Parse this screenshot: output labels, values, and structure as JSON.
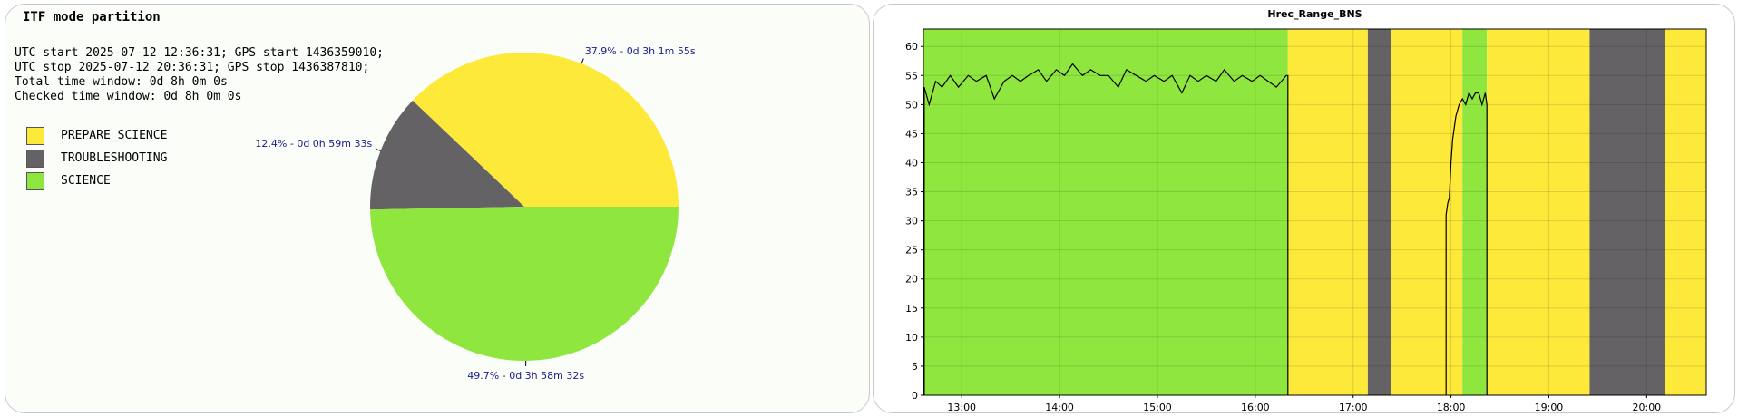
{
  "left": {
    "title": "ITF mode partition",
    "info": [
      "UTC start 2025-07-12 12:36:31; GPS start 1436359010;",
      "UTC stop 2025-07-12 20:36:31; GPS stop 1436387810;",
      "Total time window: 0d 8h 0m 0s",
      "Checked time window: 0d 8h 0m 0s"
    ],
    "legend": [
      {
        "label": "PREPARE_SCIENCE",
        "color": "#fde93a"
      },
      {
        "label": "TROUBLESHOOTING",
        "color": "#646264"
      },
      {
        "label": "SCIENCE",
        "color": "#8fe63f"
      }
    ]
  },
  "chart_data": [
    {
      "type": "pie",
      "title": "ITF mode partition",
      "slices": [
        {
          "name": "PREPARE_SCIENCE",
          "value": 37.9,
          "label": "37.9% - 0d 3h 1m 55s",
          "color": "#fde93a"
        },
        {
          "name": "TROUBLESHOOTING",
          "value": 12.4,
          "label": "12.4% - 0d 0h 59m 33s",
          "color": "#646264"
        },
        {
          "name": "SCIENCE",
          "value": 49.7,
          "label": "49.7% - 0d 3h 58m 32s",
          "color": "#8fe63f"
        }
      ]
    },
    {
      "type": "line",
      "title": "Hrec_Range_BNS",
      "xlabel": "",
      "ylabel": "",
      "xlim": [
        "12:36:31",
        "20:36:31"
      ],
      "ylim": [
        0,
        63
      ],
      "xticks": [
        "13:00",
        "14:00",
        "15:00",
        "16:00",
        "17:00",
        "18:00",
        "19:00",
        "20:00"
      ],
      "yticks": [
        0,
        5,
        10,
        15,
        20,
        25,
        30,
        35,
        40,
        45,
        50,
        55,
        60
      ],
      "grid": true,
      "background_bands": [
        {
          "mode": "SCIENCE",
          "start": "12:36:31",
          "end": "16:20",
          "color": "#8fe63f"
        },
        {
          "mode": "PREPARE_SCIENCE",
          "start": "16:20",
          "end": "17:09",
          "color": "#fde93a"
        },
        {
          "mode": "TROUBLESHOOTING",
          "start": "17:09",
          "end": "17:23",
          "color": "#646264"
        },
        {
          "mode": "PREPARE_SCIENCE",
          "start": "17:23",
          "end": "18:07",
          "color": "#fde93a"
        },
        {
          "mode": "SCIENCE",
          "start": "18:07",
          "end": "18:22",
          "color": "#8fe63f"
        },
        {
          "mode": "PREPARE_SCIENCE",
          "start": "18:22",
          "end": "19:25",
          "color": "#fde93a"
        },
        {
          "mode": "TROUBLESHOOTING",
          "start": "19:25",
          "end": "20:11",
          "color": "#646264"
        },
        {
          "mode": "PREPARE_SCIENCE",
          "start": "20:11",
          "end": "20:36:31",
          "color": "#fde93a"
        }
      ],
      "series": [
        {
          "color": "#000000",
          "x": [
            "12:37",
            "12:40",
            "12:44",
            "12:48",
            "12:53",
            "12:58",
            "13:04",
            "13:09",
            "13:15",
            "13:20",
            "13:26",
            "13:31",
            "13:36",
            "13:41",
            "13:47",
            "13:52",
            "13:58",
            "14:03",
            "14:08",
            "14:14",
            "14:19",
            "14:25",
            "14:30",
            "14:36",
            "14:41",
            "14:47",
            "14:53",
            "14:58",
            "15:04",
            "15:09",
            "15:15",
            "15:20",
            "15:25",
            "15:30",
            "15:36",
            "15:41",
            "15:47",
            "15:52",
            "15:58",
            "16:03",
            "16:08",
            "16:13",
            "16:19",
            "16:20"
          ],
          "y": [
            53,
            50,
            54,
            53,
            55,
            53,
            55,
            54,
            55,
            51,
            54,
            55,
            54,
            55,
            56,
            54,
            56,
            55,
            57,
            55,
            56,
            55,
            55,
            53,
            56,
            55,
            54,
            55,
            54,
            55,
            52,
            55,
            54,
            55,
            54,
            56,
            54,
            55,
            54,
            55,
            54,
            53,
            55,
            55
          ]
        },
        {
          "color": "#000000",
          "x": [
            "17:57",
            "17:58",
            "17:59",
            "18:00",
            "18:01",
            "18:02",
            "18:03",
            "18:04",
            "18:05",
            "18:07",
            "18:09",
            "18:11",
            "18:13",
            "18:15",
            "18:17",
            "18:19",
            "18:21",
            "18:22"
          ],
          "y": [
            31,
            33,
            34,
            40,
            44,
            46,
            48,
            49,
            50,
            51,
            50,
            52,
            51,
            52,
            52,
            50,
            52,
            50
          ]
        }
      ]
    }
  ]
}
